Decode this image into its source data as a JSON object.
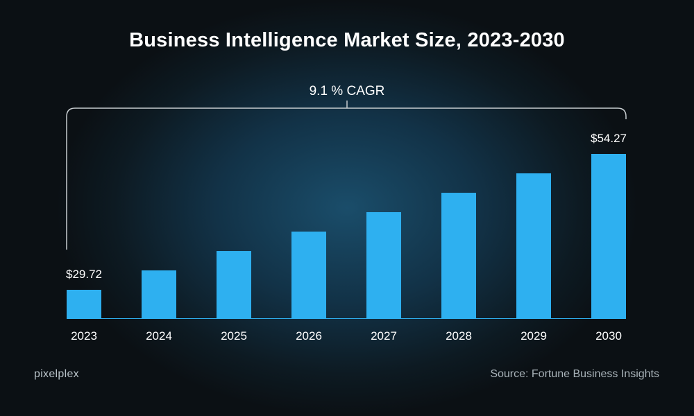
{
  "chart_data": {
    "type": "bar",
    "title": "Business Intelligence Market Size, 2023-2030",
    "categories": [
      "2023",
      "2024",
      "2025",
      "2026",
      "2027",
      "2028",
      "2029",
      "2030"
    ],
    "values": [
      29.72,
      33.23,
      36.73,
      40.24,
      43.75,
      47.25,
      50.76,
      54.27
    ],
    "data_labels": {
      "0": "$29.72",
      "7": "$54.27"
    },
    "annotation": "9.1 % CAGR",
    "xlabel": "",
    "ylabel": "",
    "ylim": [
      24.58,
      54.27
    ],
    "grid": false,
    "bar_color": "#2eb0f0"
  },
  "source": "Source: Fortune Business Insights",
  "logo": "pixelplex"
}
